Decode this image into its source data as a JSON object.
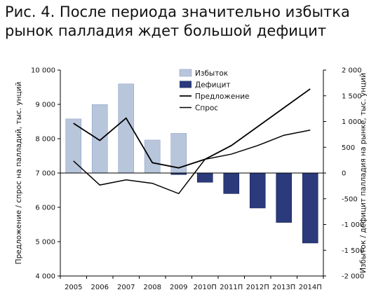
{
  "figure": {
    "title": "Рис. 4. После периода значительно избытка рынок палладия ждет большой дефицит"
  },
  "chart_data": {
    "type": "bar",
    "categories": [
      "2005",
      "2006",
      "2007",
      "2008",
      "2009",
      "2010П",
      "2011П",
      "2012П",
      "2013П",
      "2014П"
    ],
    "ylabel": "Предложение / спрос на палладий, тыс. унций",
    "y2label": "Избыток / дефицит палладия на рынке, тыс. унций",
    "ylim": [
      4000,
      10000
    ],
    "y2lim": [
      -2000,
      2000
    ],
    "yticks": [
      "4 000",
      "5 000",
      "6 000",
      "7 000",
      "8 000",
      "9 000",
      "10 000"
    ],
    "y2ticks": [
      "-2 000",
      "-1 500",
      "-1 000",
      "-500",
      "0",
      "500",
      "1 000",
      "1 500",
      "2 000"
    ],
    "legend_position": "top-center",
    "series": [
      {
        "name": "Избыток",
        "kind": "bar",
        "axis": "right",
        "color": "#b8c6dc",
        "values": [
          1050,
          1330,
          1730,
          640,
          770,
          null,
          null,
          null,
          null,
          null
        ]
      },
      {
        "name": "Дефицит",
        "kind": "bar",
        "axis": "right",
        "color": "#2b3a7a",
        "values": [
          null,
          null,
          null,
          null,
          -30,
          -180,
          -400,
          -680,
          -960,
          -1360
        ]
      },
      {
        "name": "Предложение",
        "kind": "line",
        "axis": "left",
        "color": "#000000",
        "values": [
          8450,
          7950,
          8600,
          7300,
          7150,
          7400,
          7800,
          8350,
          8900,
          9450
        ]
      },
      {
        "name": "Спрос",
        "kind": "line",
        "axis": "left",
        "color": "#000000",
        "values": [
          7350,
          6650,
          6800,
          6700,
          6400,
          7400,
          7550,
          7800,
          8100,
          8250
        ]
      }
    ]
  }
}
